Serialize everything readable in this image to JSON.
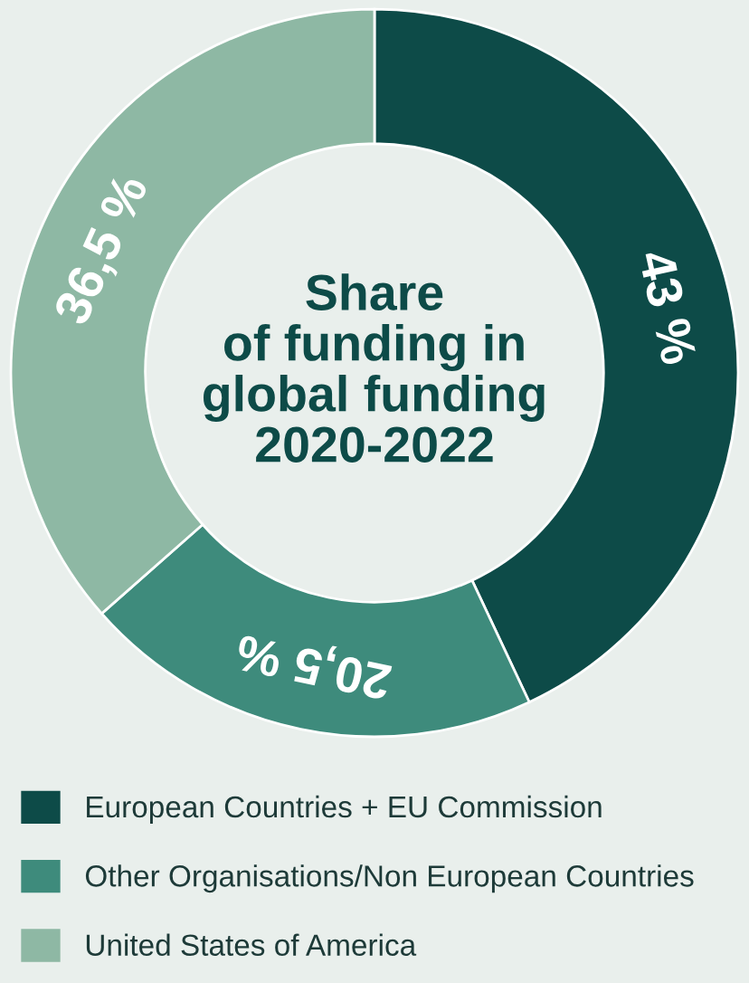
{
  "chart_data": {
    "type": "donut",
    "title": "Share\nof funding in\nglobal funding\n2020-2022",
    "categories": [
      "European Countries + EU Commission",
      "Other Organisations/Non European Countries",
      "United States of America"
    ],
    "values": [
      43,
      20.5,
      36.5
    ],
    "colors": [
      "#0d4b48",
      "#3e8b7c",
      "#8eb8a4"
    ],
    "value_labels": [
      "43 %",
      "20,5 %",
      "36,5 %"
    ],
    "legend": "bottom"
  }
}
